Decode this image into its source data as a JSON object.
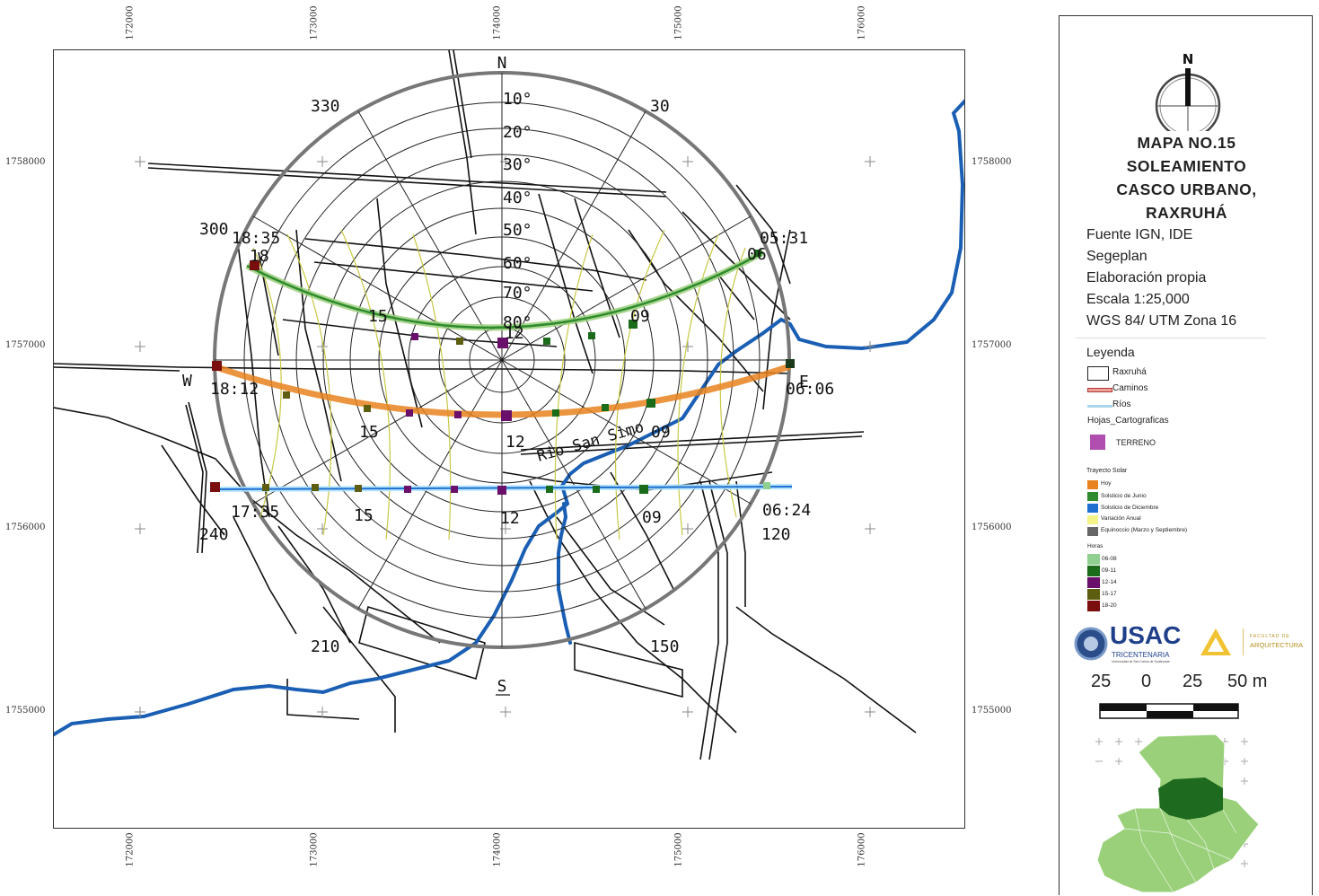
{
  "map": {
    "coords": {
      "x_ticks": [
        "172000",
        "173000",
        "174000",
        "175000",
        "176000"
      ],
      "y_ticks": [
        "1758000",
        "1757000",
        "1756000",
        "1755000"
      ]
    },
    "compass": {
      "north": "N",
      "south": "S",
      "west": "W",
      "east": "E"
    },
    "azimuths": {
      "a330": "330",
      "a30": "30",
      "a300": "300",
      "a240": "240",
      "a120": "120",
      "a210": "210",
      "a150": "150"
    },
    "altitudes": [
      "10°",
      "20°",
      "30°",
      "40°",
      "50°",
      "60°",
      "70°",
      "80°"
    ],
    "times": {
      "t1835": "18:35",
      "t531": "05:31",
      "t1812": "18:12",
      "t0606": "06:06",
      "t1735": "17:35",
      "t0624": "06:24",
      "h18": "18",
      "h06": "06",
      "h15a": "15",
      "h09a": "09",
      "h12a": "12",
      "h15b": "15",
      "h09b": "09",
      "h15c": "15",
      "h12c": "12",
      "h09c": "09",
      "h18b": "18",
      "h06b": "06"
    },
    "river_label": "Rio San Simo"
  },
  "legend": {
    "north_letter": "N",
    "title_lines": [
      "MAPA NO.15",
      "SOLEAMIENTO",
      "CASCO URBANO,",
      "RAXRUHÁ"
    ],
    "meta_lines": [
      "Fuente IGN,  IDE",
      "Segeplan",
      "Elaboración propia",
      "Escala 1:25,000",
      "WGS 84/ UTM Zona 16"
    ],
    "leyenda_title": "Leyenda",
    "items": {
      "raxruha": "Raxruhá",
      "caminos": "Caminos",
      "rios": "Ríos",
      "hojas": "Hojas_Cartograficas",
      "terreno": "TERRENO"
    },
    "trayecto_title": "Trayecto Solar",
    "trayecto": [
      "Hoy",
      "Solsticio de Junio",
      "Solsticio de Diciembre",
      "Variación Anual",
      "Equinoccio (Marzo y Septiembre)"
    ],
    "horas_title": "Horas",
    "horas": [
      "06-08",
      "09-11",
      "12-14",
      "15-17",
      "18-20"
    ],
    "logos": {
      "usac": "USAC",
      "tricentenaria": "TRICENTENARIA",
      "usac_sub": "Universidad de San Carlos de Guatemala",
      "facultad": "FACULTAD DE",
      "arquitectura": "ARQUITECTURA"
    },
    "scale": [
      "25",
      "0",
      "25",
      "50 m"
    ]
  },
  "colors": {
    "hoy": "#e8821e",
    "junio": "#2e8b2e",
    "diciembre": "#1f6fd0",
    "variacion": "#f3f38a",
    "equinoccio": "#666666",
    "h0608": "#8fcf8f",
    "h0911": "#1a6b1a",
    "h1214": "#6a0f6a",
    "h1517": "#5e5e10",
    "h1820": "#7a0e0e",
    "river": "#1a5fb4",
    "terreno": "#b04fb0",
    "guate": "#9ad07a",
    "region": "#1e6a1e"
  }
}
